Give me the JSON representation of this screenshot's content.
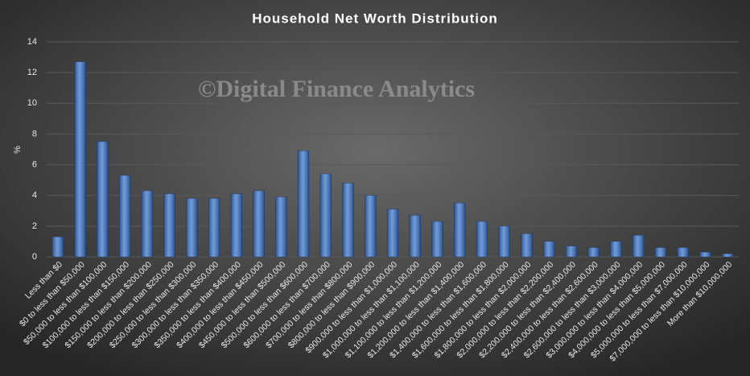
{
  "chart_data": {
    "type": "bar",
    "title": "Household Net Worth Distribution",
    "watermark": "©Digital Finance Analytics",
    "y_label": "%",
    "categories": [
      "Less than $0",
      "$0 to less than $50,000",
      "$50,000 to less than $100,000",
      "$100,000 to less than $150,000",
      "$150,000 to less than $200,000",
      "$200,000 to less than $250,000",
      "$250,000 to less than $300,000",
      "$300,000 to less than $350,000",
      "$350,000 to less than $400,000",
      "$400,000 to less than $450,000",
      "$450,000 to less than $500,000",
      "$500,000 to less than $600,000",
      "$600,000 to less than $700,000",
      "$700,000 to less than $800,000",
      "$800,000 to less than $900,000",
      "$900,000 to less than $1,000,000",
      "$1,000,000 to less than $1,100,000",
      "$1,100,000 to less than $1,200,000",
      "$1,200,000 to less than $1,400,000",
      "$1,400,000 to less than $1,600,000",
      "$1,600,000 to less than $1,800,000",
      "$1,800,000 to less than $2,000,000",
      "$2,000,000 to less than $2,200,000",
      "$2,200,000 to less than $2,400,000",
      "$2,400,000 to less than $2,600,000",
      "$2,600,000 to less than $3,000,000",
      "$3,000,000 to less than $4,000,000",
      "$4,000,000 to less than $5,000,000",
      "$5,000,000 to less than $7,000,000",
      "$7,000,000 to less than $10,000,000",
      "More than $10,000,000"
    ],
    "values": [
      1.3,
      12.7,
      7.5,
      5.3,
      4.3,
      4.1,
      3.8,
      3.8,
      4.1,
      4.3,
      3.9,
      6.9,
      5.4,
      4.8,
      4.0,
      3.1,
      2.7,
      2.3,
      3.5,
      2.3,
      2.0,
      1.5,
      1.0,
      0.7,
      0.6,
      1.0,
      1.4,
      0.6,
      0.6,
      0.3,
      0.2
    ],
    "color": "#3f78cc",
    "ylim": [
      0,
      14
    ],
    "yticks": [
      0,
      2,
      4,
      6,
      8,
      10,
      12,
      14
    ],
    "grid": true
  }
}
